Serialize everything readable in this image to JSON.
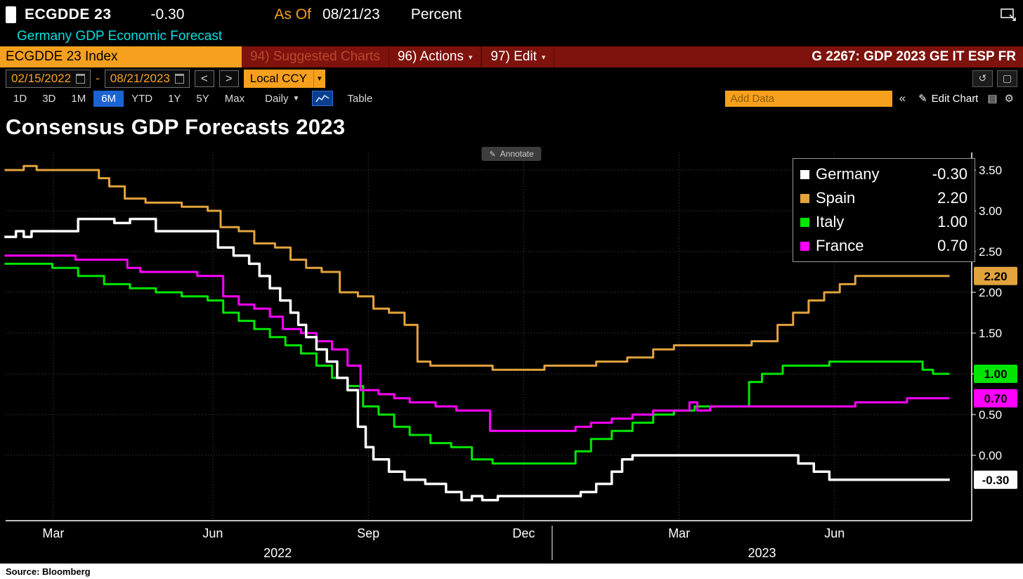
{
  "icons": {
    "caret_down": "▾",
    "caret_down_big": "▼",
    "chevron_left": "<",
    "chevron_right": ">",
    "collapse": "«",
    "undo": "↺",
    "window": "▢",
    "pencil": "✎",
    "gear": "⚙",
    "rows": "▤",
    "dash": "-"
  },
  "header": {
    "ticker": "ECGDDE 23",
    "value": "-0.30",
    "as_of_label": "As Of",
    "as_of_date": "08/21/23",
    "unit": "Percent",
    "subtitle": "Germany GDP Economic Forecast"
  },
  "menubar": {
    "security": "ECGDDE 23 Index",
    "suggested_charts": "94) Suggested Charts",
    "actions": "96) Actions",
    "edit": "97) Edit",
    "right_title": "G 2267: GDP 2023 GE IT ESP FR"
  },
  "controls": {
    "date_from": "02/15/2022",
    "date_to": "08/21/2023",
    "currency": "Local CCY",
    "ranges": [
      "1D",
      "3D",
      "1M",
      "6M",
      "YTD",
      "1Y",
      "5Y",
      "Max"
    ],
    "active_range": "6M",
    "frequency": "Daily",
    "table_label": "Table",
    "add_data_placeholder": "Add Data",
    "edit_chart_label": "Edit Chart"
  },
  "chart": {
    "title": "Consensus GDP Forecasts 2023",
    "annotate_label": "Annotate",
    "source": "Source:  Bloomberg"
  },
  "chart_data": {
    "type": "line",
    "title": "Consensus GDP Forecasts 2023",
    "unit": "Percent",
    "x_axis": {
      "start": "2022-02-15",
      "end": "2023-08-21",
      "span_months": 18.2,
      "month_labels": [
        {
          "label": "Mar",
          "t": 0.92
        },
        {
          "label": "Jun",
          "t": 4.0
        },
        {
          "label": "Sep",
          "t": 7.0
        },
        {
          "label": "Dec",
          "t": 10.0
        },
        {
          "label": "Mar",
          "t": 13.0
        },
        {
          "label": "Jun",
          "t": 16.0
        }
      ],
      "year_labels": [
        {
          "label": "2022",
          "t": 5.25
        },
        {
          "label": "2023",
          "t": 14.6
        }
      ],
      "year_divider_t": 10.55
    },
    "y_axis": {
      "ticks": [
        3.5,
        3.0,
        2.5,
        2.0,
        1.5,
        1.0,
        0.5,
        0.0
      ],
      "min": -0.8,
      "max": 3.7,
      "side": "right",
      "grid": true
    },
    "legend": {
      "position": "top-right",
      "entries": [
        {
          "name": "Germany",
          "value": "-0.30",
          "color": "#FFFFFF"
        },
        {
          "name": "Spain",
          "value": "2.20",
          "color": "#E2A33D"
        },
        {
          "name": "Italy",
          "value": "1.00",
          "color": "#00E600"
        },
        {
          "name": "France",
          "value": "0.70",
          "color": "#FF00FF"
        }
      ]
    },
    "draw_order": [
      1,
      2,
      3,
      0
    ],
    "series": [
      {
        "name": "Germany",
        "color": "#FFFFFF",
        "width": 3.5,
        "last": -0.3,
        "value_label": "-0.30",
        "points": [
          [
            0,
            2.68
          ],
          [
            0.2,
            2.75
          ],
          [
            0.35,
            2.68
          ],
          [
            0.5,
            2.75
          ],
          [
            1.4,
            2.9
          ],
          [
            2.1,
            2.85
          ],
          [
            2.4,
            2.9
          ],
          [
            2.9,
            2.75
          ],
          [
            3.9,
            2.75
          ],
          [
            4.1,
            2.55
          ],
          [
            4.4,
            2.45
          ],
          [
            4.7,
            2.35
          ],
          [
            4.9,
            2.2
          ],
          [
            5.1,
            2.05
          ],
          [
            5.3,
            1.9
          ],
          [
            5.5,
            1.75
          ],
          [
            5.65,
            1.6
          ],
          [
            5.8,
            1.45
          ],
          [
            6.0,
            1.3
          ],
          [
            6.2,
            1.15
          ],
          [
            6.4,
            0.95
          ],
          [
            6.6,
            0.8
          ],
          [
            6.8,
            0.35
          ],
          [
            6.95,
            0.1
          ],
          [
            7.1,
            -0.05
          ],
          [
            7.4,
            -0.2
          ],
          [
            7.7,
            -0.3
          ],
          [
            8.1,
            -0.35
          ],
          [
            8.5,
            -0.45
          ],
          [
            8.8,
            -0.55
          ],
          [
            9.0,
            -0.5
          ],
          [
            9.2,
            -0.55
          ],
          [
            9.5,
            -0.5
          ],
          [
            10.8,
            -0.5
          ],
          [
            11.1,
            -0.45
          ],
          [
            11.4,
            -0.35
          ],
          [
            11.7,
            -0.2
          ],
          [
            11.9,
            -0.05
          ],
          [
            12.1,
            0.0
          ],
          [
            15.0,
            0.0
          ],
          [
            15.3,
            -0.1
          ],
          [
            15.6,
            -0.2
          ],
          [
            15.9,
            -0.3
          ],
          [
            18.2,
            -0.3
          ]
        ]
      },
      {
        "name": "Spain",
        "color": "#E2A33D",
        "width": 3,
        "last": 2.2,
        "value_label": "2.20",
        "points": [
          [
            0,
            3.5
          ],
          [
            0.35,
            3.55
          ],
          [
            0.6,
            3.5
          ],
          [
            1.6,
            3.5
          ],
          [
            1.8,
            3.4
          ],
          [
            2.0,
            3.3
          ],
          [
            2.3,
            3.15
          ],
          [
            2.7,
            3.1
          ],
          [
            3.4,
            3.05
          ],
          [
            3.9,
            3.0
          ],
          [
            4.15,
            2.8
          ],
          [
            4.5,
            2.75
          ],
          [
            4.8,
            2.6
          ],
          [
            5.2,
            2.55
          ],
          [
            5.5,
            2.4
          ],
          [
            5.8,
            2.3
          ],
          [
            6.1,
            2.25
          ],
          [
            6.45,
            2.0
          ],
          [
            6.8,
            1.95
          ],
          [
            7.1,
            1.8
          ],
          [
            7.4,
            1.75
          ],
          [
            7.7,
            1.6
          ],
          [
            7.95,
            1.15
          ],
          [
            8.2,
            1.1
          ],
          [
            9.1,
            1.1
          ],
          [
            9.4,
            1.05
          ],
          [
            10.1,
            1.05
          ],
          [
            10.4,
            1.1
          ],
          [
            11.1,
            1.1
          ],
          [
            11.4,
            1.15
          ],
          [
            12.0,
            1.2
          ],
          [
            12.5,
            1.3
          ],
          [
            12.9,
            1.35
          ],
          [
            14.4,
            1.4
          ],
          [
            14.9,
            1.6
          ],
          [
            15.2,
            1.75
          ],
          [
            15.5,
            1.9
          ],
          [
            15.8,
            2.0
          ],
          [
            16.1,
            2.1
          ],
          [
            16.4,
            2.2
          ],
          [
            18.2,
            2.2
          ]
        ]
      },
      {
        "name": "Italy",
        "color": "#00E600",
        "width": 3,
        "last": 1.0,
        "value_label": "1.00",
        "points": [
          [
            0,
            2.35
          ],
          [
            0.9,
            2.3
          ],
          [
            1.4,
            2.2
          ],
          [
            1.9,
            2.1
          ],
          [
            2.4,
            2.05
          ],
          [
            2.9,
            2.0
          ],
          [
            3.4,
            1.95
          ],
          [
            3.9,
            1.9
          ],
          [
            4.2,
            1.75
          ],
          [
            4.5,
            1.65
          ],
          [
            4.8,
            1.55
          ],
          [
            5.1,
            1.45
          ],
          [
            5.4,
            1.35
          ],
          [
            5.7,
            1.25
          ],
          [
            6.0,
            1.1
          ],
          [
            6.3,
            0.95
          ],
          [
            6.6,
            0.85
          ],
          [
            6.9,
            0.6
          ],
          [
            7.2,
            0.5
          ],
          [
            7.5,
            0.35
          ],
          [
            7.8,
            0.25
          ],
          [
            8.2,
            0.15
          ],
          [
            8.6,
            0.1
          ],
          [
            9.0,
            -0.05
          ],
          [
            9.4,
            -0.1
          ],
          [
            10.7,
            -0.1
          ],
          [
            11.0,
            0.05
          ],
          [
            11.3,
            0.2
          ],
          [
            11.7,
            0.3
          ],
          [
            12.1,
            0.4
          ],
          [
            12.5,
            0.5
          ],
          [
            12.9,
            0.55
          ],
          [
            13.3,
            0.6
          ],
          [
            14.1,
            0.6
          ],
          [
            14.35,
            0.9
          ],
          [
            14.6,
            1.0
          ],
          [
            15.0,
            1.1
          ],
          [
            15.6,
            1.1
          ],
          [
            15.9,
            1.15
          ],
          [
            17.4,
            1.15
          ],
          [
            17.7,
            1.05
          ],
          [
            17.9,
            1.0
          ],
          [
            18.2,
            1.0
          ]
        ]
      },
      {
        "name": "France",
        "color": "#FF00FF",
        "width": 3,
        "last": 0.7,
        "value_label": "0.70",
        "points": [
          [
            0,
            2.45
          ],
          [
            1.1,
            2.45
          ],
          [
            1.35,
            2.4
          ],
          [
            2.1,
            2.4
          ],
          [
            2.35,
            2.3
          ],
          [
            2.6,
            2.25
          ],
          [
            3.4,
            2.25
          ],
          [
            3.7,
            2.2
          ],
          [
            4.0,
            2.2
          ],
          [
            4.2,
            1.95
          ],
          [
            4.5,
            1.85
          ],
          [
            4.8,
            1.8
          ],
          [
            5.1,
            1.7
          ],
          [
            5.35,
            1.55
          ],
          [
            5.7,
            1.5
          ],
          [
            6.0,
            1.4
          ],
          [
            6.3,
            1.3
          ],
          [
            6.6,
            1.1
          ],
          [
            6.85,
            0.8
          ],
          [
            7.2,
            0.75
          ],
          [
            7.5,
            0.7
          ],
          [
            7.8,
            0.65
          ],
          [
            8.3,
            0.6
          ],
          [
            8.7,
            0.55
          ],
          [
            9.1,
            0.55
          ],
          [
            9.35,
            0.3
          ],
          [
            10.6,
            0.3
          ],
          [
            11.0,
            0.35
          ],
          [
            11.3,
            0.4
          ],
          [
            11.7,
            0.45
          ],
          [
            12.1,
            0.5
          ],
          [
            12.5,
            0.55
          ],
          [
            13.0,
            0.55
          ],
          [
            13.2,
            0.65
          ],
          [
            13.35,
            0.55
          ],
          [
            13.6,
            0.6
          ],
          [
            16.1,
            0.6
          ],
          [
            16.4,
            0.65
          ],
          [
            17.1,
            0.65
          ],
          [
            17.4,
            0.7
          ],
          [
            18.2,
            0.7
          ]
        ]
      }
    ]
  }
}
